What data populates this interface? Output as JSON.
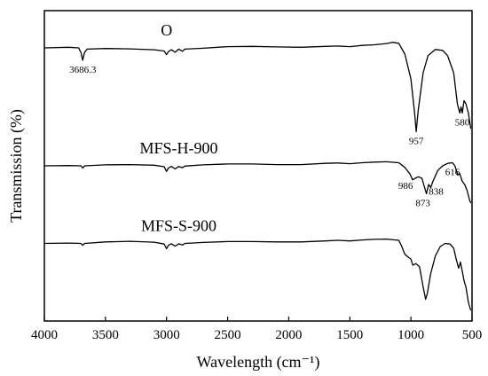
{
  "chart_data": {
    "type": "line",
    "title": "",
    "xlabel": "Wavelength (cm⁻¹)",
    "ylabel": "Transmission (%)",
    "xlim": [
      4000,
      500
    ],
    "x_reversed": true,
    "xticks": [
      "4000",
      "3500",
      "3000",
      "2500",
      "2000",
      "1500",
      "1000",
      "500"
    ],
    "y_ticks_shown": false,
    "grid": false,
    "legend": "none",
    "line_color": "#000000",
    "series": [
      {
        "name": "O",
        "baseline": 88,
        "points": [
          [
            4000,
            88
          ],
          [
            3800,
            88.2
          ],
          [
            3720,
            88
          ],
          [
            3700,
            86.5
          ],
          [
            3686.3,
            84
          ],
          [
            3672,
            86.5
          ],
          [
            3650,
            87.6
          ],
          [
            3500,
            87.8
          ],
          [
            3300,
            87.7
          ],
          [
            3100,
            87.4
          ],
          [
            3020,
            87
          ],
          [
            3000,
            85.8
          ],
          [
            2985,
            86.8
          ],
          [
            2960,
            87.4
          ],
          [
            2930,
            86.6
          ],
          [
            2900,
            87.6
          ],
          [
            2870,
            86.9
          ],
          [
            2850,
            87.6
          ],
          [
            2700,
            87.9
          ],
          [
            2500,
            88.4
          ],
          [
            2300,
            88.5
          ],
          [
            2100,
            88.3
          ],
          [
            1900,
            88.2
          ],
          [
            1700,
            88.5
          ],
          [
            1600,
            88.6
          ],
          [
            1500,
            88.4
          ],
          [
            1400,
            88.8
          ],
          [
            1300,
            89
          ],
          [
            1200,
            89.4
          ],
          [
            1150,
            89.8
          ],
          [
            1100,
            89.5
          ],
          [
            1050,
            86
          ],
          [
            1000,
            78
          ],
          [
            970,
            67
          ],
          [
            957,
            61
          ],
          [
            940,
            68
          ],
          [
            900,
            80
          ],
          [
            860,
            85.5
          ],
          [
            800,
            87.5
          ],
          [
            740,
            87.2
          ],
          [
            700,
            85.5
          ],
          [
            650,
            80
          ],
          [
            620,
            70
          ],
          [
            600,
            67
          ],
          [
            590,
            69
          ],
          [
            580,
            67
          ],
          [
            565,
            71
          ],
          [
            550,
            70
          ],
          [
            530,
            67
          ],
          [
            510,
            62
          ]
        ],
        "labels": [
          {
            "text": "3686.3",
            "x": 3686.3
          },
          {
            "text": "957",
            "x": 957
          },
          {
            "text": "580",
            "x": 580
          }
        ]
      },
      {
        "name": "MFS-H-900",
        "baseline": 50,
        "points": [
          [
            4000,
            50
          ],
          [
            3800,
            50.1
          ],
          [
            3700,
            50
          ],
          [
            3686.3,
            49.3
          ],
          [
            3670,
            50
          ],
          [
            3500,
            50.3
          ],
          [
            3300,
            50.4
          ],
          [
            3100,
            50.2
          ],
          [
            3020,
            49.7
          ],
          [
            3000,
            48.2
          ],
          [
            2985,
            49.3
          ],
          [
            2960,
            49.8
          ],
          [
            2930,
            49
          ],
          [
            2900,
            49.8
          ],
          [
            2870,
            49.4
          ],
          [
            2850,
            49.9
          ],
          [
            2700,
            50.3
          ],
          [
            2500,
            50.6
          ],
          [
            2300,
            50.6
          ],
          [
            2100,
            50.4
          ],
          [
            1900,
            50.4
          ],
          [
            1700,
            50.8
          ],
          [
            1600,
            50.9
          ],
          [
            1500,
            50.7
          ],
          [
            1400,
            51
          ],
          [
            1300,
            51.2
          ],
          [
            1200,
            51.3
          ],
          [
            1100,
            51
          ],
          [
            1050,
            49.5
          ],
          [
            1010,
            47.5
          ],
          [
            986,
            45.5
          ],
          [
            965,
            46
          ],
          [
            940,
            46.5
          ],
          [
            910,
            46
          ],
          [
            873,
            41
          ],
          [
            855,
            44
          ],
          [
            838,
            43
          ],
          [
            820,
            45
          ],
          [
            780,
            48.5
          ],
          [
            740,
            50
          ],
          [
            700,
            50.8
          ],
          [
            660,
            51
          ],
          [
            640,
            50
          ],
          [
            616,
            47
          ],
          [
            600,
            47.5
          ],
          [
            580,
            45
          ],
          [
            560,
            44
          ],
          [
            540,
            42
          ],
          [
            520,
            39
          ],
          [
            510,
            38
          ]
        ],
        "labels": [
          {
            "text": "986",
            "x": 986
          },
          {
            "text": "873",
            "x": 873
          },
          {
            "text": "838",
            "x": 838
          },
          {
            "text": "616",
            "x": 616
          }
        ]
      },
      {
        "name": "MFS-S-900",
        "baseline": 25,
        "points": [
          [
            4000,
            25
          ],
          [
            3800,
            25.1
          ],
          [
            3700,
            25
          ],
          [
            3686.3,
            24.4
          ],
          [
            3670,
            25
          ],
          [
            3500,
            25.5
          ],
          [
            3300,
            25.7
          ],
          [
            3100,
            25.4
          ],
          [
            3020,
            24.8
          ],
          [
            3000,
            23.3
          ],
          [
            2985,
            24.4
          ],
          [
            2960,
            24.9
          ],
          [
            2930,
            24.1
          ],
          [
            2900,
            24.9
          ],
          [
            2870,
            24.5
          ],
          [
            2850,
            25
          ],
          [
            2700,
            25.3
          ],
          [
            2500,
            25.6
          ],
          [
            2300,
            25.6
          ],
          [
            2100,
            25.5
          ],
          [
            1900,
            25.5
          ],
          [
            1700,
            25.8
          ],
          [
            1600,
            26
          ],
          [
            1500,
            25.8
          ],
          [
            1400,
            26.1
          ],
          [
            1300,
            26.3
          ],
          [
            1200,
            26.4
          ],
          [
            1100,
            26
          ],
          [
            1080,
            24.5
          ],
          [
            1050,
            21.5
          ],
          [
            1020,
            20.5
          ],
          [
            1000,
            20
          ],
          [
            985,
            18
          ],
          [
            960,
            18.5
          ],
          [
            930,
            17.5
          ],
          [
            900,
            11
          ],
          [
            880,
            7
          ],
          [
            865,
            9
          ],
          [
            840,
            15
          ],
          [
            800,
            21
          ],
          [
            760,
            24
          ],
          [
            720,
            25
          ],
          [
            680,
            24.8
          ],
          [
            650,
            23.5
          ],
          [
            630,
            20
          ],
          [
            610,
            17
          ],
          [
            595,
            19
          ],
          [
            580,
            16
          ],
          [
            565,
            13
          ],
          [
            550,
            11
          ],
          [
            530,
            6
          ],
          [
            515,
            4
          ],
          [
            510,
            3.5
          ]
        ],
        "labels": []
      }
    ]
  }
}
